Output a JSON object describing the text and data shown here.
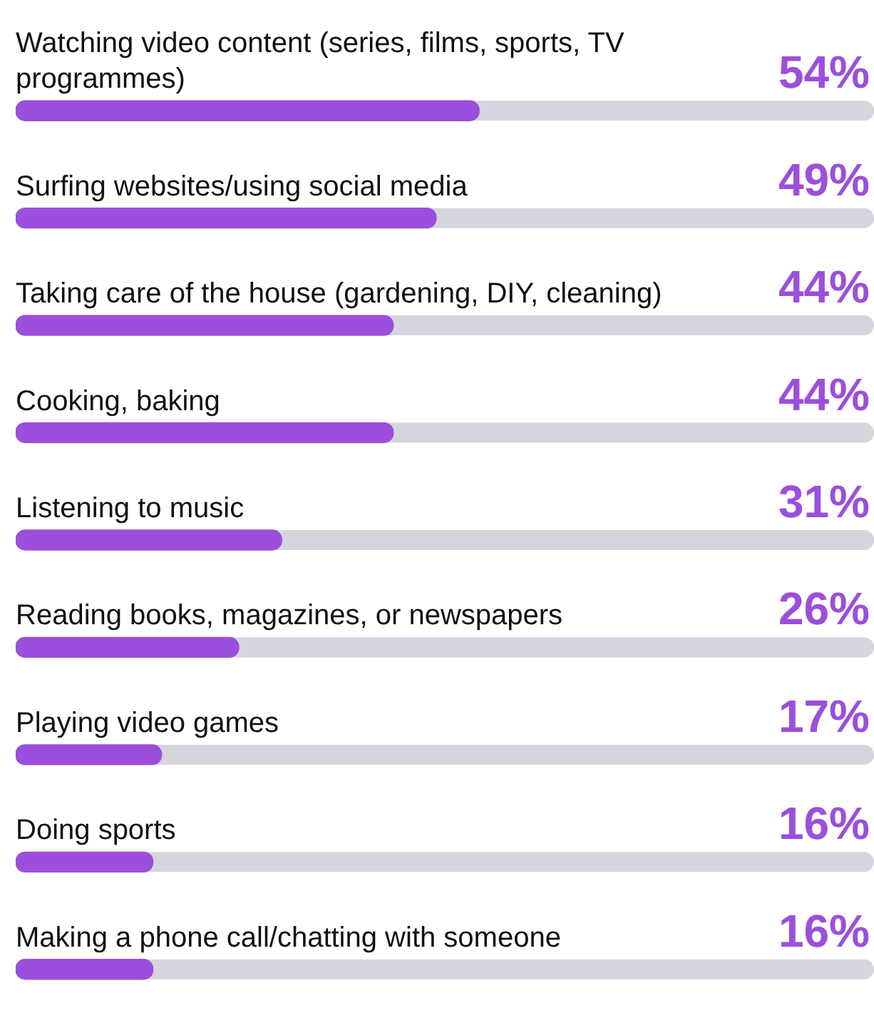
{
  "chart_data": {
    "type": "bar",
    "orientation": "horizontal",
    "categories": [
      "Watching video content (series, films, sports, TV programmes)",
      "Surfing websites/using social media",
      "Taking care of the house (gardening, DIY, cleaning)",
      "Cooking, baking",
      "Listening to music",
      "Reading books, magazines, or newspapers",
      "Playing video games",
      "Doing sports",
      "Making a phone call/chatting with someone"
    ],
    "values": [
      54,
      49,
      44,
      44,
      31,
      26,
      17,
      16,
      16
    ],
    "value_labels": [
      "54%",
      "49%",
      "44%",
      "44%",
      "31%",
      "26%",
      "17%",
      "16%",
      "16%"
    ],
    "color": "#9b4fdc",
    "xlim": [
      0,
      100
    ]
  }
}
